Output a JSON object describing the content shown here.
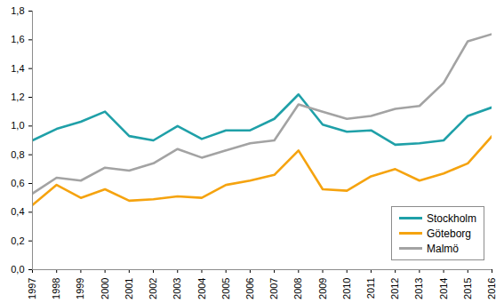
{
  "chart_data": {
    "type": "line",
    "x": [
      1997,
      1998,
      1999,
      2000,
      2001,
      2002,
      2003,
      2004,
      2005,
      2006,
      2007,
      2008,
      2009,
      2010,
      2011,
      2012,
      2013,
      2014,
      2015,
      2016
    ],
    "series": [
      {
        "name": "Stockholm",
        "color": "#1fa0a8",
        "values": [
          0.9,
          0.98,
          1.03,
          1.1,
          0.93,
          0.9,
          1.0,
          0.91,
          0.97,
          0.97,
          1.05,
          1.22,
          1.01,
          0.96,
          0.97,
          0.87,
          0.88,
          0.9,
          1.07,
          1.13
        ]
      },
      {
        "name": "Göteborg",
        "color": "#f5a30f",
        "values": [
          0.45,
          0.59,
          0.5,
          0.56,
          0.48,
          0.49,
          0.51,
          0.5,
          0.59,
          0.62,
          0.66,
          0.83,
          0.56,
          0.55,
          0.65,
          0.7,
          0.62,
          0.67,
          0.74,
          0.93
        ]
      },
      {
        "name": "Malmö",
        "color": "#a3a3a3",
        "values": [
          0.53,
          0.64,
          0.62,
          0.71,
          0.69,
          0.74,
          0.84,
          0.78,
          0.83,
          0.88,
          0.9,
          1.15,
          1.1,
          1.05,
          1.07,
          1.12,
          1.14,
          1.3,
          1.59,
          1.64
        ]
      }
    ],
    "xlim": [
      1997,
      2016
    ],
    "xticks": [
      1997,
      1998,
      1999,
      2000,
      2001,
      2002,
      2003,
      2004,
      2005,
      2006,
      2007,
      2008,
      2009,
      2010,
      2011,
      2012,
      2013,
      2014,
      2015,
      2016
    ],
    "ylim": [
      0,
      1.8
    ],
    "yticks": [
      {
        "value": 0,
        "label": "0,0"
      },
      {
        "value": 0.2,
        "label": "0,2"
      },
      {
        "value": 0.4,
        "label": "0,4"
      },
      {
        "value": 0.6,
        "label": "0,6"
      },
      {
        "value": 0.8,
        "label": "0,8"
      },
      {
        "value": 1.0,
        "label": "1,0"
      },
      {
        "value": 1.2,
        "label": "1,2"
      },
      {
        "value": 1.4,
        "label": "1,4"
      },
      {
        "value": 1.6,
        "label": "1,6"
      },
      {
        "value": 1.8,
        "label": "1,8"
      }
    ],
    "grid": false,
    "legend": "bottom-right"
  }
}
